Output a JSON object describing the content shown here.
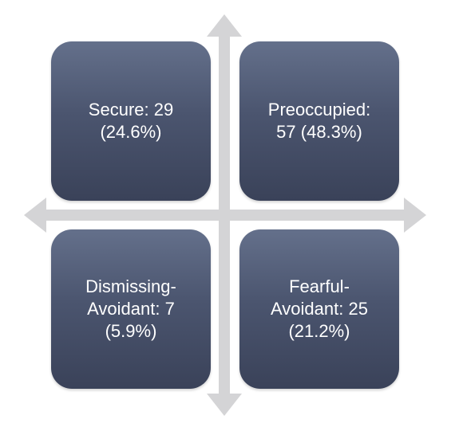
{
  "diagram": {
    "quadrants": {
      "top_left": {
        "text": "Secure: 29\n(24.6%)"
      },
      "top_right": {
        "text": "Preoccupied:\n57 (48.3%)"
      },
      "bottom_left": {
        "text": "Dismissing-\nAvoidant: 7\n(5.9%)"
      },
      "bottom_right": {
        "text": "Fearful-\nAvoidant: 25\n(21.2%)"
      }
    },
    "colors": {
      "quadrant_top": "#64708b",
      "quadrant_bottom": "#3a4259",
      "axis": "#d4d4d6",
      "text": "#ffffff"
    }
  }
}
